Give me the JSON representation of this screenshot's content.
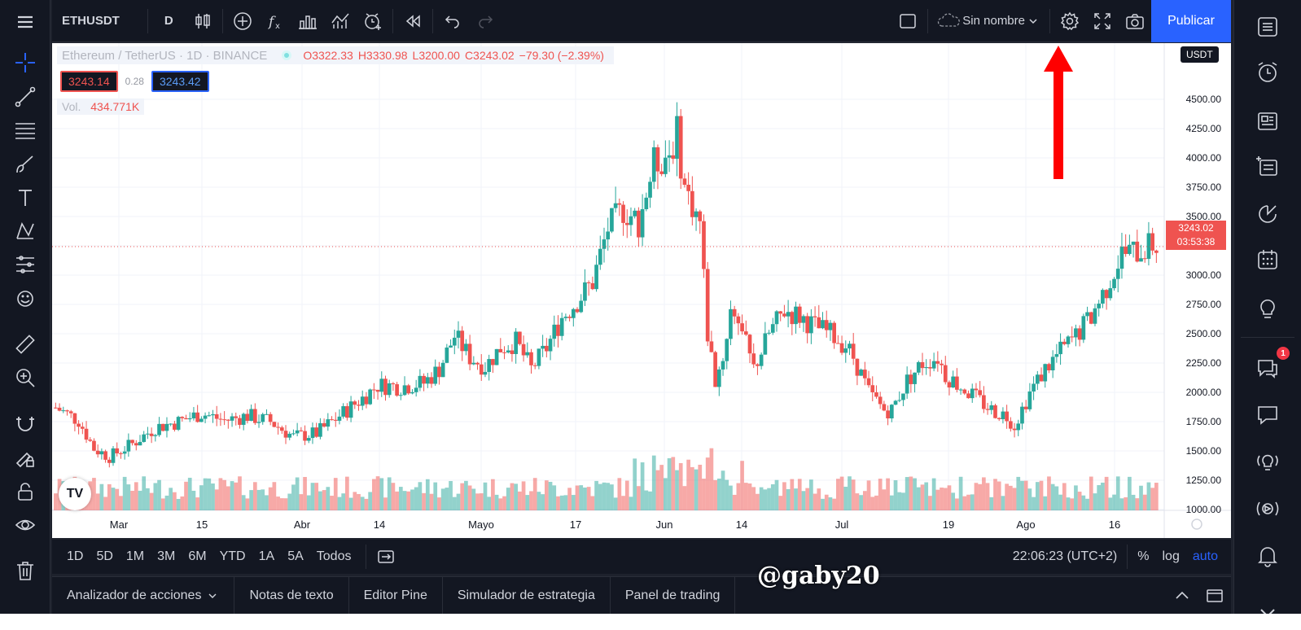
{
  "toolbar": {
    "symbol": "ETHUSDT",
    "interval": "D",
    "layout_name": "Sin nombre",
    "publish_label": "Publicar"
  },
  "legend": {
    "title": "Ethereum / TetherUS · 1D · BINANCE",
    "open": "O3322.33",
    "high": "H3330.98",
    "low": "L3200.00",
    "close": "C3243.02",
    "change": "−79.30 (−2.39%)",
    "sell_price": "3243.14",
    "spread": "0.28",
    "buy_price": "3243.42",
    "vol_label": "Vol.",
    "vol_value": "434.771K"
  },
  "chart": {
    "currency": "USDT",
    "current_price": "3243.02",
    "countdown": "03:53:38",
    "up_color": "#26a69a",
    "down_color": "#ef5350"
  },
  "chart_data": {
    "type": "candlestick",
    "symbol": "ETHUSDT",
    "y_ticks": [
      1000,
      1250,
      1500,
      1750,
      2000,
      2250,
      2500,
      2750,
      3000,
      3250,
      3500,
      3750,
      4000,
      4250,
      4500
    ],
    "x_ticks": [
      "Mar",
      "15",
      "Abr",
      "14",
      "Mayo",
      "17",
      "Jun",
      "14",
      "Jul",
      "19",
      "Ago",
      "16"
    ],
    "ylim": [
      950,
      4600
    ],
    "grid": true,
    "close_path": [
      [
        0,
        1870
      ],
      [
        6,
        1760
      ],
      [
        10,
        1520
      ],
      [
        14,
        1450
      ],
      [
        20,
        1560
      ],
      [
        26,
        1700
      ],
      [
        32,
        1750
      ],
      [
        38,
        1820
      ],
      [
        44,
        1760
      ],
      [
        50,
        1800
      ],
      [
        56,
        1750
      ],
      [
        62,
        1620
      ],
      [
        68,
        1650
      ],
      [
        74,
        1800
      ],
      [
        80,
        1950
      ],
      [
        84,
        2060
      ],
      [
        90,
        2050
      ],
      [
        96,
        2080
      ],
      [
        100,
        2200
      ],
      [
        104,
        2480
      ],
      [
        108,
        2300
      ],
      [
        112,
        2220
      ],
      [
        116,
        2380
      ],
      [
        120,
        2430
      ],
      [
        124,
        2200
      ],
      [
        128,
        2380
      ],
      [
        132,
        2640
      ],
      [
        136,
        2780
      ],
      [
        140,
        2940
      ],
      [
        144,
        3400
      ],
      [
        148,
        3560
      ],
      [
        152,
        3460
      ],
      [
        156,
        3950
      ],
      [
        160,
        4050
      ],
      [
        162,
        4200
      ],
      [
        164,
        3750
      ],
      [
        166,
        3600
      ],
      [
        168,
        3450
      ],
      [
        170,
        2500
      ],
      [
        172,
        2100
      ],
      [
        174,
        2300
      ],
      [
        176,
        2700
      ],
      [
        178,
        2650
      ],
      [
        180,
        2400
      ],
      [
        182,
        2200
      ],
      [
        186,
        2500
      ],
      [
        190,
        2700
      ],
      [
        194,
        2650
      ],
      [
        198,
        2560
      ],
      [
        202,
        2500
      ],
      [
        206,
        2400
      ],
      [
        208,
        2300
      ],
      [
        212,
        2000
      ],
      [
        216,
        1850
      ],
      [
        218,
        1850
      ],
      [
        222,
        2100
      ],
      [
        226,
        2250
      ],
      [
        230,
        2300
      ],
      [
        232,
        2150
      ],
      [
        236,
        2050
      ],
      [
        240,
        1950
      ],
      [
        244,
        1850
      ],
      [
        248,
        1800
      ],
      [
        250,
        1720
      ],
      [
        254,
        2000
      ],
      [
        258,
        2200
      ],
      [
        262,
        2350
      ],
      [
        266,
        2480
      ],
      [
        270,
        2650
      ],
      [
        274,
        2900
      ],
      [
        278,
        3180
      ],
      [
        282,
        3200
      ],
      [
        286,
        3260
      ],
      [
        287,
        3243
      ]
    ]
  },
  "bottombar": {
    "ranges": [
      "1D",
      "5D",
      "1M",
      "3M",
      "6M",
      "YTD",
      "1A",
      "5A",
      "Todos"
    ],
    "clock": "22:06:23 (UTC+2)",
    "percent": "%",
    "log": "log",
    "auto": "auto"
  },
  "panels": {
    "tabs": [
      "Analizador de acciones",
      "Notas de texto",
      "Editor Pine",
      "Simulador de estrategia",
      "Panel de trading"
    ]
  },
  "notifications": {
    "count": "1"
  },
  "watermark": "@gaby20"
}
